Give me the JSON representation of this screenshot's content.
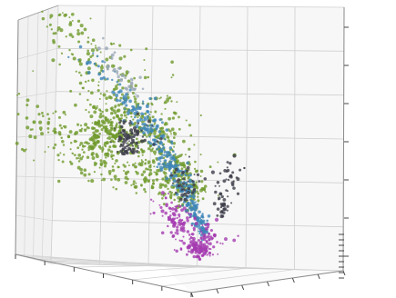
{
  "chart_data": {
    "type": "scatter",
    "projection": "3d",
    "title": "",
    "xlabel": "",
    "ylabel": "",
    "zlabel": "",
    "grid": true,
    "legend": "none",
    "tick_labels_visible": false,
    "series": [
      {
        "color": "#6f9a2c",
        "clusters": [
          {
            "from": [
              0.5,
              0.35,
              0.35
            ],
            "to": [
              0.02,
              0.9,
              0.6
            ],
            "spread": 0.09,
            "count": 230
          },
          {
            "from": [
              0.5,
              0.35,
              0.35
            ],
            "to": [
              0.9,
              0.95,
              0.75
            ],
            "spread": 0.09,
            "count": 210
          },
          {
            "from": [
              0.55,
              0.45,
              0.4
            ],
            "to": [
              0.65,
              0.98,
              1.0
            ],
            "spread": 0.07,
            "count": 200
          },
          {
            "from": [
              0.4,
              0.3,
              0.3
            ],
            "to": [
              0.38,
              0.5,
              0.7
            ],
            "spread": 0.08,
            "count": 120
          },
          {
            "from": [
              0.55,
              0.8,
              0.55
            ],
            "to": [
              0.75,
              0.95,
              0.62
            ],
            "spread": 0.06,
            "count": 110
          },
          {
            "from": [
              0.2,
              0.7,
              0.55
            ],
            "to": [
              0.4,
              0.6,
              0.58
            ],
            "spread": 0.07,
            "count": 120
          }
        ]
      },
      {
        "color": "#3f86b8",
        "clusters": [
          {
            "from": [
              0.45,
              0.25,
              0.15
            ],
            "to": [
              0.7,
              0.9,
              0.85
            ],
            "spread": 0.025,
            "count": 170
          },
          {
            "from": [
              0.48,
              0.28,
              0.15
            ],
            "to": [
              0.85,
              0.85,
              0.68
            ],
            "spread": 0.03,
            "count": 150
          },
          {
            "from": [
              0.46,
              0.26,
              0.15
            ],
            "to": [
              0.55,
              0.6,
              0.72
            ],
            "spread": 0.02,
            "count": 80
          }
        ]
      },
      {
        "color": "#a53bb0",
        "clusters": [
          {
            "from": [
              0.4,
              0.25,
              0.05
            ],
            "to": [
              0.55,
              0.4,
              0.18
            ],
            "spread": 0.05,
            "count": 170
          },
          {
            "from": [
              0.35,
              0.3,
              0.2
            ],
            "to": [
              0.45,
              0.45,
              0.3
            ],
            "spread": 0.04,
            "count": 70
          }
        ]
      },
      {
        "color": "#3d3d4a",
        "clusters": [
          {
            "from": [
              0.3,
              0.55,
              0.55
            ],
            "to": [
              0.45,
              0.6,
              0.62
            ],
            "spread": 0.04,
            "count": 110
          },
          {
            "from": [
              0.5,
              0.2,
              0.25
            ],
            "to": [
              0.58,
              0.2,
              0.5
            ],
            "spread": 0.025,
            "count": 60
          },
          {
            "from": [
              0.6,
              0.5,
              0.3
            ],
            "to": [
              0.7,
              0.55,
              0.4
            ],
            "spread": 0.03,
            "count": 40
          }
        ]
      },
      {
        "color": "#9aa8b8",
        "clusters": [
          {
            "from": [
              0.55,
              0.6,
              0.75
            ],
            "to": [
              0.62,
              0.8,
              0.88
            ],
            "spread": 0.03,
            "count": 40
          }
        ]
      }
    ]
  }
}
